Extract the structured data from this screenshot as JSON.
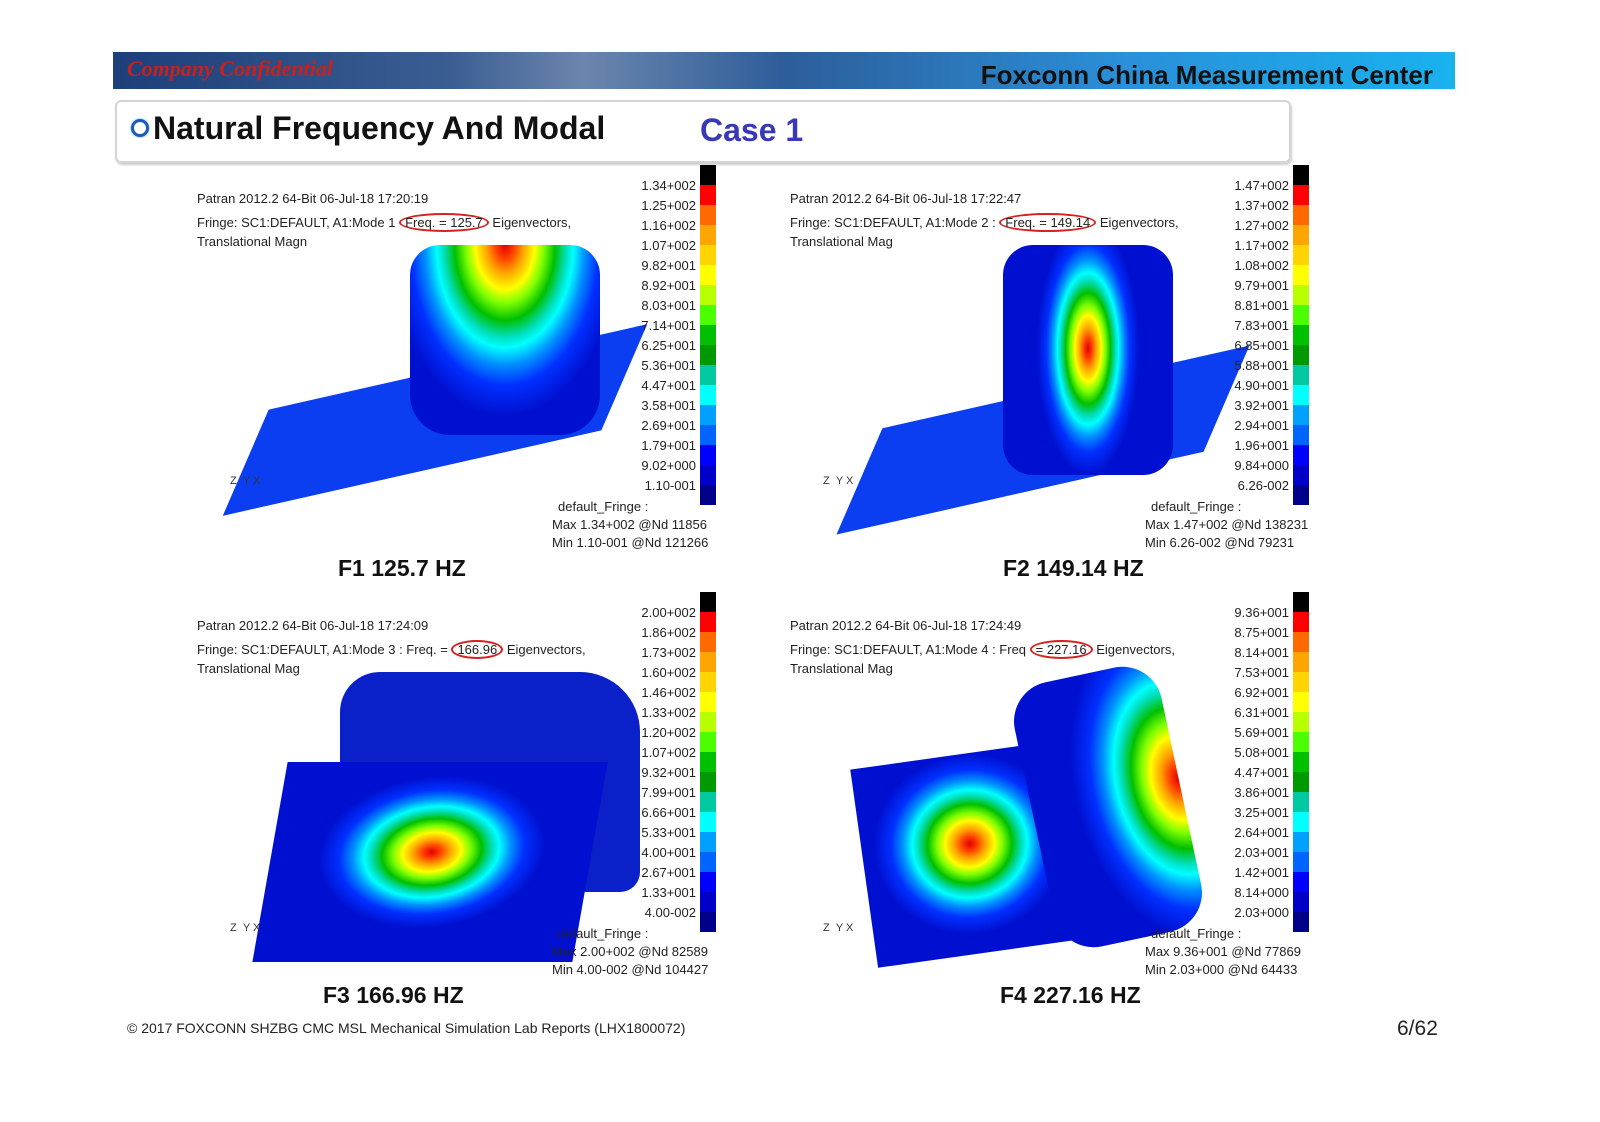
{
  "header": {
    "confidential": "Company Confidential",
    "center": "Foxconn China Measurement Center"
  },
  "title": "Natural Frequency And Modal",
  "case": "Case 1",
  "colors": {
    "jet": [
      "#000000",
      "#ff0000",
      "#ff6a00",
      "#ffa500",
      "#ffd400",
      "#ffff00",
      "#b8ff00",
      "#4cff00",
      "#00c000",
      "#009a00",
      "#00c8a0",
      "#00ffff",
      "#00a0ff",
      "#0064ff",
      "#0000ff",
      "#0000c8",
      "#00008a"
    ]
  },
  "panels": [
    {
      "software": "Patran 2012.2 64-Bit 06-Jul-18 17:20:19",
      "fringe_prefix": "Fringe: SC1:DEFAULT, A1:Mode 1 ",
      "freq": "Freq. = 125.7",
      "fringe_suffix": " Eigenvectors, Translational Magn",
      "legend": [
        "1.34+002",
        "1.25+002",
        "1.16+002",
        "1.07+002",
        "9.82+001",
        "8.92+001",
        "8.03+001",
        "7.14+001",
        "6.25+001",
        "5.36+001",
        "4.47+001",
        "3.58+001",
        "2.69+001",
        "1.79+001",
        "9.02+000",
        "1.10-001"
      ],
      "stats_title": "default_Fringe :",
      "max": "Max 1.34+002 @Nd 11856",
      "min": "Min 1.10-001 @Nd 121266",
      "caption": "F1 125.7 HZ",
      "mode": "v"
    },
    {
      "software": "Patran 2012.2 64-Bit 06-Jul-18 17:22:47",
      "fringe_prefix": "Fringe: SC1:DEFAULT, A1:Mode 2 : ",
      "freq": "Freq. = 149.14",
      "fringe_suffix": " Eigenvectors, Translational Mag",
      "legend": [
        "1.47+002",
        "1.37+002",
        "1.27+002",
        "1.17+002",
        "1.08+002",
        "9.79+001",
        "8.81+001",
        "7.83+001",
        "6.85+001",
        "5.88+001",
        "4.90+001",
        "3.92+001",
        "2.94+001",
        "1.96+001",
        "9.84+000",
        "6.26-002"
      ],
      "stats_title": "default_Fringe :",
      "max": "Max 1.47+002 @Nd 138231",
      "min": "Min 6.26-002 @Nd 79231",
      "caption": "F2 149.14 HZ",
      "mode": "ellipse"
    },
    {
      "software": "Patran 2012.2 64-Bit 06-Jul-18 17:24:09",
      "fringe_prefix": "Fringe: SC1:DEFAULT, A1:Mode 3 : Freq. = ",
      "freq": "166.96",
      "fringe_suffix": " Eigenvectors, Translational Mag",
      "legend": [
        "2.00+002",
        "1.86+002",
        "1.73+002",
        "1.60+002",
        "1.46+002",
        "1.33+002",
        "1.20+002",
        "1.07+002",
        "9.32+001",
        "7.99+001",
        "6.66+001",
        "5.33+001",
        "4.00+001",
        "2.67+001",
        "1.33+001",
        "4.00-002"
      ],
      "stats_title": "default_Fringe :",
      "max": "Max 2.00+002 @Nd 82589",
      "min": "Min 4.00-002 @Nd 104427",
      "caption": "F3 166.96 HZ",
      "mode": "plate"
    },
    {
      "software": "Patran 2012.2 64-Bit 06-Jul-18 17:24:49",
      "fringe_prefix": "Fringe: SC1:DEFAULT, A1:Mode 4 : Freq ",
      "freq": "= 227.16",
      "fringe_suffix": " Eigenvectors, Translational Mag",
      "legend": [
        "9.36+001",
        "8.75+001",
        "8.14+001",
        "7.53+001",
        "6.92+001",
        "6.31+001",
        "5.69+001",
        "5.08+001",
        "4.47+001",
        "3.86+001",
        "3.25+001",
        "2.64+001",
        "2.03+001",
        "1.42+001",
        "8.14+000",
        "2.03+000"
      ],
      "stats_title": "default_Fringe :",
      "max": "Max 9.36+001 @Nd 77869",
      "min": "Min 2.03+000 @Nd 64433",
      "caption": "F4 227.16 HZ",
      "mode": "target"
    }
  ],
  "footer": "© 2017  FOXCONN SHZBG CMC MSL   Mechanical Simulation Lab Reports (LHX1800072)",
  "page": "6/62"
}
